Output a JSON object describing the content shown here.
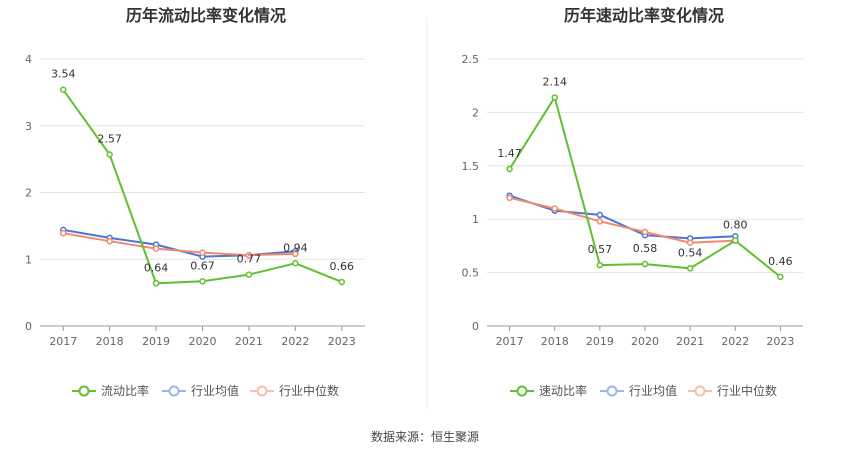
{
  "source": "数据来源：恒生聚源",
  "charts": [
    {
      "title": "历年流动比率变化情况",
      "legend": [
        "流动比率",
        "行业均值",
        "行业中位数"
      ],
      "colors": [
        "#5ec130",
        "#4a76d4",
        "#f08a6a"
      ],
      "chart_data": {
        "type": "line",
        "title": "历年流动比率变化情况",
        "x": [
          "2017",
          "2018",
          "2019",
          "2020",
          "2021",
          "2022",
          "2023"
        ],
        "ylim": [
          0,
          4
        ],
        "yticks": [
          "0",
          "1",
          "2",
          "3",
          "4"
        ],
        "series": [
          {
            "name": "流动比率",
            "values": [
              3.54,
              2.57,
              0.64,
              0.67,
              0.77,
              0.94,
              0.66
            ],
            "labels": [
              "3.54",
              "2.57",
              "0.64",
              "0.67",
              "0.77",
              "0.94",
              "0.66"
            ]
          },
          {
            "name": "行业均值",
            "values": [
              1.44,
              1.32,
              1.22,
              1.04,
              1.06,
              1.12,
              null
            ]
          },
          {
            "name": "行业中位数",
            "values": [
              1.39,
              1.27,
              1.16,
              1.1,
              1.06,
              1.08,
              null
            ]
          }
        ],
        "grid": true,
        "legend_position": "bottom"
      }
    },
    {
      "title": "历年速动比率变化情况",
      "legend": [
        "速动比率",
        "行业均值",
        "行业中位数"
      ],
      "colors": [
        "#5ec130",
        "#4a76d4",
        "#f08a6a"
      ],
      "chart_data": {
        "type": "line",
        "title": "历年速动比率变化情况",
        "x": [
          "2017",
          "2018",
          "2019",
          "2020",
          "2021",
          "2022",
          "2023"
        ],
        "ylim": [
          0,
          2.5
        ],
        "yticks": [
          "0",
          "0.5",
          "1",
          "1.5",
          "2",
          "2.5"
        ],
        "series": [
          {
            "name": "速动比率",
            "values": [
              1.47,
              2.14,
              0.57,
              0.58,
              0.54,
              0.8,
              0.46
            ],
            "labels": [
              "1.47",
              "2.14",
              "0.57",
              "0.58",
              "0.54",
              "0.80",
              "0.46"
            ]
          },
          {
            "name": "行业均值",
            "values": [
              1.22,
              1.08,
              1.04,
              0.85,
              0.82,
              0.84,
              null
            ]
          },
          {
            "name": "行业中位数",
            "values": [
              1.2,
              1.1,
              0.98,
              0.88,
              0.78,
              0.8,
              null
            ]
          }
        ],
        "grid": true,
        "legend_position": "bottom"
      }
    }
  ]
}
